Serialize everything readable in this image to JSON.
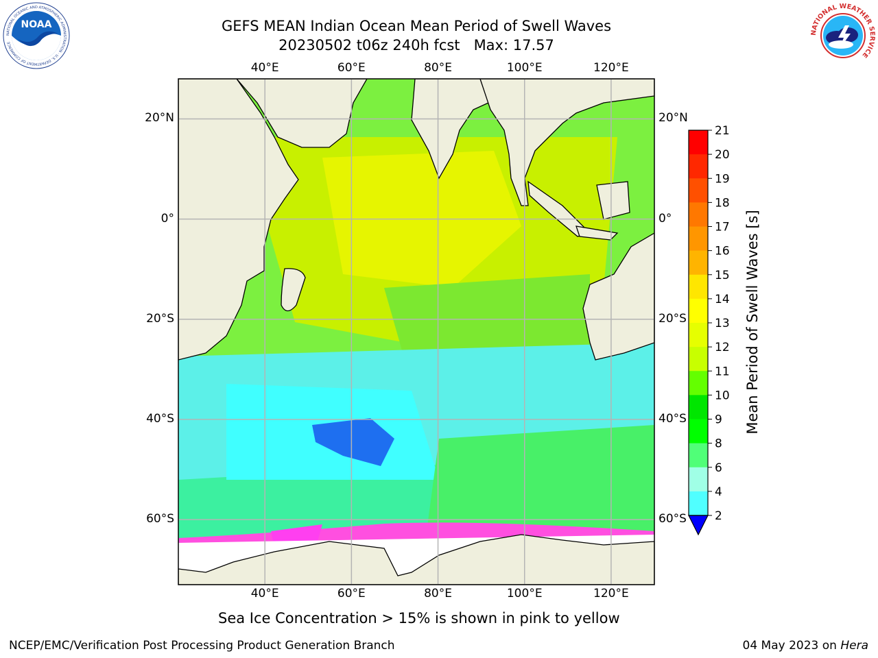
{
  "title": {
    "line1": "GEFS MEAN Indian Ocean Mean Period of Swell Waves",
    "line2": "20230502 t06z 240h fcst   Max: 17.57"
  },
  "map": {
    "lon_ticks": [
      "40°E",
      "60°E",
      "80°E",
      "100°E",
      "120°E"
    ],
    "lat_ticks": [
      "20°N",
      "0°",
      "20°S",
      "40°S",
      "60°S"
    ],
    "lon_range": [
      20,
      130
    ],
    "lat_range": [
      -73,
      28
    ],
    "land_color": "#efefdd",
    "ice_note": "Sea Ice Concentration > 15% is shown in pink to yellow"
  },
  "colorbar": {
    "label": "Mean Period of Swell Waves [s]",
    "ticks": [
      "21",
      "20",
      "19",
      "18",
      "17",
      "16",
      "15",
      "14",
      "13",
      "12",
      "11",
      "10",
      "9",
      "8",
      "6",
      "4",
      "2"
    ],
    "colors": [
      "#ff0000",
      "#ff2800",
      "#ff5000",
      "#ff7800",
      "#ff9600",
      "#ffb400",
      "#ffe600",
      "#ffff00",
      "#e6ff00",
      "#c8ff00",
      "#64ff00",
      "#00e600",
      "#00ff00",
      "#50ff78",
      "#a0ffe6",
      "#50ffff",
      "#00ffff",
      "#0078ff"
    ],
    "extend_color": "#0000ff"
  },
  "logos": {
    "left": "NOAA",
    "left_ring": "NATIONAL OCEANIC AND ATMOSPHERIC ADMINISTRATION · U.S. DEPARTMENT OF COMMERCE",
    "right_ring": "NATIONAL WEATHER SERVICE"
  },
  "footer": {
    "left": "NCEP/EMC/Verification Post Processing Product Generation Branch",
    "right_date": "04 May 2023 on ",
    "right_host": "Hera"
  }
}
